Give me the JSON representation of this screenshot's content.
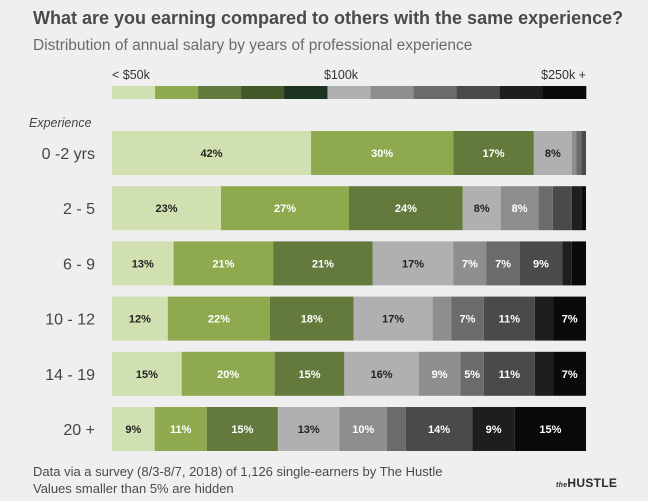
{
  "title": "What are you earning compared to others with the same experience?",
  "subtitle": "Distribution of annual salary by years of professional experience",
  "footer": {
    "line1": "Data via a survey (8/3-8/7, 2018) of 1,126 single-earners by The Hustle",
    "line2": "Values smaller than 5% are hidden"
  },
  "brand": {
    "prefix": "the",
    "name": "HUSTLE"
  },
  "chart_data": {
    "type": "bar",
    "orientation": "horizontal",
    "stacked": true,
    "normalized": true,
    "y_axis_title": "Experience",
    "categories": [
      "0 -2 yrs",
      "2 - 5",
      "6 - 9",
      "10 - 12",
      "14 - 19",
      "20 +"
    ],
    "scale_labels": [
      "< $50k",
      "$100k",
      "$250k +"
    ],
    "label_threshold_percent": 5,
    "band_colors": [
      "#d1e0b1",
      "#8fa94f",
      "#637a3c",
      "#45582a",
      "#1c3322",
      "#b0b0b0",
      "#8e8e8e",
      "#6b6b6b",
      "#4a4a4a",
      "#1e1e1e",
      "#0a0a0a"
    ],
    "rows": [
      [
        42,
        30,
        17,
        0,
        0,
        8,
        1,
        1,
        1,
        0,
        0
      ],
      [
        23,
        27,
        24,
        0,
        0,
        8,
        8,
        3,
        4,
        2,
        1
      ],
      [
        13,
        21,
        21,
        0,
        0,
        17,
        7,
        7,
        9,
        2,
        3
      ],
      [
        12,
        22,
        18,
        0,
        0,
        17,
        4,
        7,
        11,
        4,
        7
      ],
      [
        15,
        20,
        15,
        0,
        0,
        16,
        9,
        5,
        11,
        4,
        7
      ],
      [
        9,
        11,
        15,
        0,
        0,
        13,
        10,
        4,
        14,
        9,
        15
      ]
    ]
  }
}
